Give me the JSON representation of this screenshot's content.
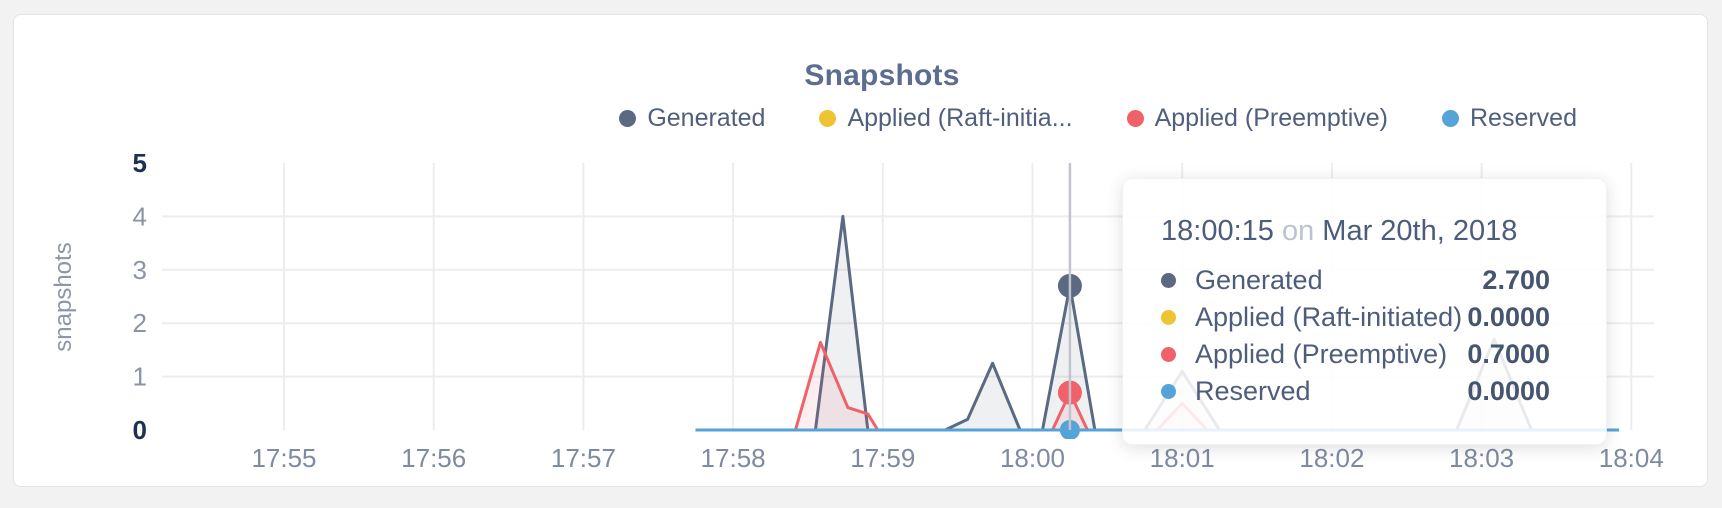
{
  "header": {
    "title": "Snapshots"
  },
  "legend": {
    "items": [
      {
        "label": "Generated",
        "color": "#5b6983"
      },
      {
        "label": "Applied (Raft-initia...",
        "color": "#eec433"
      },
      {
        "label": "Applied (Preemptive)",
        "color": "#f0616a"
      },
      {
        "label": "Reserved",
        "color": "#54a3d9"
      }
    ]
  },
  "axes": {
    "y_label": "snapshots",
    "y_ticks": [
      {
        "label": "5",
        "value": 5,
        "bold": true
      },
      {
        "label": "4",
        "value": 4,
        "bold": false
      },
      {
        "label": "3",
        "value": 3,
        "bold": false
      },
      {
        "label": "2",
        "value": 2,
        "bold": false
      },
      {
        "label": "1",
        "value": 1,
        "bold": false
      },
      {
        "label": "0",
        "value": 0,
        "bold": true
      }
    ],
    "x_ticks": [
      "17:55",
      "17:56",
      "17:57",
      "17:58",
      "17:59",
      "18:00",
      "18:01",
      "18:02",
      "18:03",
      "18:04"
    ]
  },
  "chart_data": {
    "type": "area",
    "title": "Snapshots",
    "ylabel": "snapshots",
    "ylim": [
      0,
      5
    ],
    "x_range": [
      "17:55",
      "18:04"
    ],
    "grid": true,
    "legend_position": "top-right",
    "series": [
      {
        "name": "Generated",
        "color": "#5b6983",
        "fill": "rgba(91,104,131,0.10)",
        "points": [
          [
            "17:57:45",
            0
          ],
          [
            "17:58:33",
            0
          ],
          [
            "17:58:44",
            4.0
          ],
          [
            "17:58:54",
            0
          ],
          [
            "17:59:25",
            0
          ],
          [
            "17:59:34",
            0.2
          ],
          [
            "17:59:44",
            1.25
          ],
          [
            "17:59:55",
            0
          ],
          [
            "18:00:04",
            0
          ],
          [
            "18:00:15",
            2.7
          ],
          [
            "18:00:25",
            0
          ],
          [
            "18:00:45",
            0
          ],
          [
            "18:01:00",
            1.1
          ],
          [
            "18:01:15",
            0
          ],
          [
            "18:02:50",
            0
          ],
          [
            "18:03:05",
            1.7
          ],
          [
            "18:03:20",
            0
          ],
          [
            "18:03:55",
            0
          ]
        ]
      },
      {
        "name": "Applied (Raft-initiated)",
        "color": "#eec433",
        "fill": "none",
        "points": [
          [
            "17:57:45",
            0
          ],
          [
            "18:03:55",
            0
          ]
        ]
      },
      {
        "name": "Applied (Preemptive)",
        "color": "#f0616a",
        "fill": "rgba(240,97,106,0.10)",
        "points": [
          [
            "17:57:45",
            0
          ],
          [
            "17:58:25",
            0
          ],
          [
            "17:58:35",
            1.64
          ],
          [
            "17:58:46",
            0.42
          ],
          [
            "17:58:54",
            0.3
          ],
          [
            "17:58:58",
            0
          ],
          [
            "18:00:08",
            0
          ],
          [
            "18:00:15",
            0.7
          ],
          [
            "18:00:22",
            0
          ],
          [
            "18:00:50",
            0
          ],
          [
            "18:01:00",
            0.5
          ],
          [
            "18:01:10",
            0
          ],
          [
            "18:03:55",
            0
          ]
        ]
      },
      {
        "name": "Reserved",
        "color": "#54a3d9",
        "fill": "none",
        "points": [
          [
            "17:57:45",
            0
          ],
          [
            "18:03:55",
            0
          ]
        ]
      }
    ],
    "hover": {
      "time": "18:00:15",
      "markers": [
        {
          "series": "Generated",
          "value": 2.7,
          "color": "#5b6983",
          "radius": 12
        },
        {
          "series": "Applied (Raft-initiated)",
          "value": 0.0,
          "color": "#eec433",
          "radius": 10
        },
        {
          "series": "Applied (Preemptive)",
          "value": 0.7,
          "color": "#f0616a",
          "radius": 12
        },
        {
          "series": "Reserved",
          "value": 0.0,
          "color": "#54a3d9",
          "radius": 10
        }
      ]
    }
  },
  "tooltip": {
    "time": "18:00:15",
    "conj": "on",
    "date": "Mar 20th, 2018",
    "rows": [
      {
        "label": "Generated",
        "value": "2.700",
        "color": "#5b6983"
      },
      {
        "label": "Applied (Raft-initiated)",
        "value": "0.0000",
        "color": "#eec433"
      },
      {
        "label": "Applied (Preemptive)",
        "value": "0.7000",
        "color": "#f0616a"
      },
      {
        "label": "Reserved",
        "value": "0.0000",
        "color": "#54a3d9"
      }
    ]
  },
  "colors": {
    "grid": "#ededef",
    "crosshair": "#c1c4cb",
    "tick_bold": "#1e3150",
    "tick_normal": "#8a94a8",
    "x_tick": "#7e8aa0",
    "axis_title": "#8c96a8",
    "title": "#5c6d90"
  }
}
